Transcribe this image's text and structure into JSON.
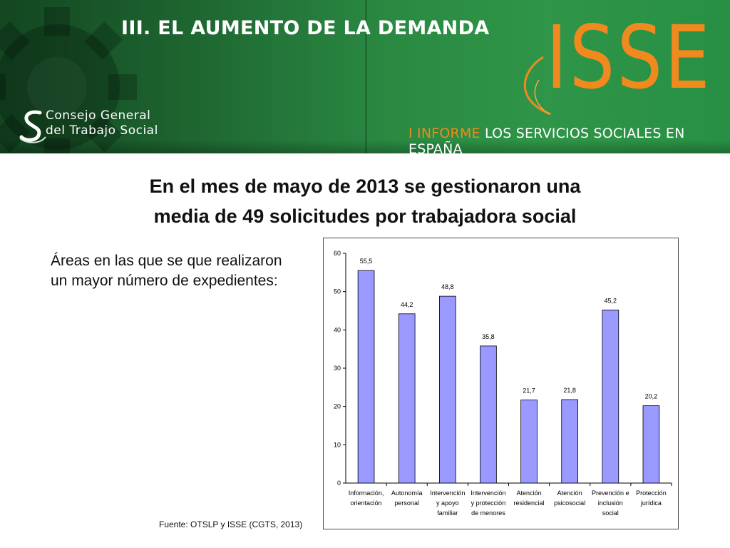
{
  "header": {
    "section_title": "III. EL AUMENTO DE LA DEMANDA",
    "cgts_line1": "Consejo General",
    "cgts_line2": "del Trabajo Social",
    "isse_logo": "ISSE",
    "informe_highlight": "I INFORME",
    "informe_rest": "LOS SERVICIOS SOCIALES EN ESPAÑA",
    "colors": {
      "banner_green": "#24783a",
      "isse_orange": "#f08a1e"
    }
  },
  "main": {
    "headline_line1": "En el mes de mayo de 2013 se gestionaron una",
    "headline_line2": "media de 49 solicitudes por trabajadora social",
    "areas_text": "Áreas en las que se que realizaron un mayor número de expedientes:",
    "source": "Fuente: OTSLP y ISSE (CGTS, 2013)"
  },
  "chart_data": {
    "type": "bar",
    "categories": [
      [
        "Información,",
        "orientación"
      ],
      [
        "Autonomía",
        "personal"
      ],
      [
        "Intervención",
        "y apoyo",
        "familiar"
      ],
      [
        "Intervención",
        "y protección",
        "de menores"
      ],
      [
        "Atención",
        "residencial"
      ],
      [
        "Atención",
        "psicosocial"
      ],
      [
        "Prevención e",
        "inclusión",
        "social"
      ],
      [
        "Protección",
        "jurídica"
      ]
    ],
    "values": [
      55.5,
      44.2,
      48.8,
      35.8,
      21.7,
      21.8,
      45.2,
      20.2
    ],
    "data_labels": [
      "55,5",
      "44,2",
      "48,8",
      "35,8",
      "21,7",
      "21,8",
      "45,2",
      "20,2"
    ],
    "y_ticks": [
      "0",
      "10",
      "20",
      "30",
      "40",
      "50",
      "60"
    ],
    "ylim": [
      0,
      60
    ],
    "bar_color": "#9999ff",
    "bar_outline": "#000000",
    "grid": false,
    "legend": "none"
  }
}
